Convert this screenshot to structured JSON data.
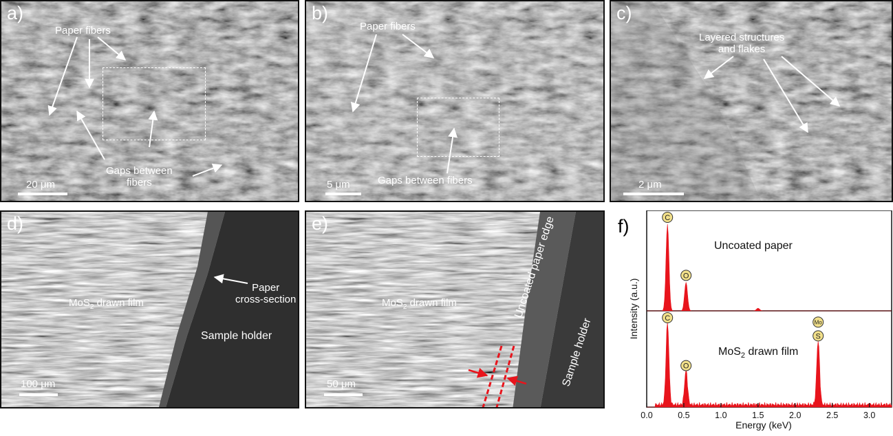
{
  "panels": {
    "a": {
      "label": "a)",
      "fibers_label": "Paper fibers",
      "gaps_label": "Gaps between\nfibers",
      "scale_label": "20 μm"
    },
    "b": {
      "label": "b)",
      "fibers_label": "Paper fibers",
      "gaps_label": "Gaps between fibers",
      "scale_label": "5 μm"
    },
    "c": {
      "label": "c)",
      "layered_label": "Layered structures\nand flakes",
      "scale_label": "2 μm"
    },
    "d": {
      "label": "d)",
      "film_label": "MoS",
      "film_sub": "2",
      "film_tail": " drawn film",
      "cross_label": "Paper\ncross-section",
      "holder_label": "Sample holder",
      "scale_label": "100 μm"
    },
    "e": {
      "label": "e)",
      "film_label": "MoS",
      "film_sub": "2",
      "film_tail": " drawn film",
      "edge_label": "Uncoated paper edge",
      "holder_label": "Sample holder",
      "scale_label": "50 μm"
    },
    "f": {
      "label": "f)"
    }
  },
  "colors": {
    "spectrum": "#e8141c",
    "badge_fill": "#f2e08a",
    "sem_gray": "#6b6b6b"
  },
  "chart_data": {
    "type": "area",
    "xlabel": "Energy (keV)",
    "ylabel": "Intensity (a.u.)",
    "xlim": [
      0.0,
      3.3
    ],
    "xticks": [
      "0.0",
      "0.5",
      "1.0",
      "1.5",
      "2.0",
      "2.5",
      "3.0"
    ],
    "series": [
      {
        "name": "Uncoated paper",
        "peaks": [
          {
            "x": 0.28,
            "y": 1.0,
            "label": "C"
          },
          {
            "x": 0.53,
            "y": 0.33,
            "label": "O"
          }
        ],
        "minor_peaks": [
          {
            "x": 1.5,
            "y": 0.03
          }
        ]
      },
      {
        "name_main": "MoS",
        "name_sub": "2",
        "name_tail": " drawn film",
        "peaks": [
          {
            "x": 0.28,
            "y": 1.0,
            "label": "C"
          },
          {
            "x": 0.53,
            "y": 0.42,
            "label": "O"
          },
          {
            "x": 2.31,
            "y": 0.78,
            "label": "S"
          }
        ],
        "extra_badges": [
          {
            "x": 2.31,
            "label": "Mo"
          }
        ]
      }
    ]
  }
}
